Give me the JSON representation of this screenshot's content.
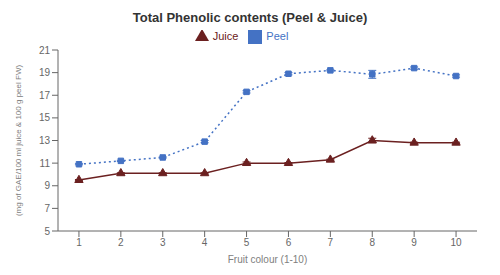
{
  "chart_data": {
    "type": "line",
    "title": "Total Phenolic contents (Peel & Juice)",
    "x_label": "Fruit colour (1-10)",
    "y_label": "(mg of GAE/100 ml juice & 100 g peel FW)",
    "x": [
      1,
      2,
      3,
      4,
      5,
      6,
      7,
      8,
      9,
      10
    ],
    "series": [
      {
        "name": "Peel",
        "color": "#4472C4",
        "marker": "square",
        "line_style": "dotted",
        "values": [
          10.9,
          11.2,
          11.5,
          12.9,
          17.3,
          18.9,
          19.2,
          18.85,
          19.4,
          18.7
        ],
        "errors": [
          0.05,
          0.05,
          0.05,
          0.1,
          0.1,
          0.1,
          0.05,
          0.35,
          0.1,
          0.1
        ]
      },
      {
        "name": "Juice",
        "color": "#6B2020",
        "marker": "triangle",
        "line_style": "solid",
        "values": [
          9.5,
          10.1,
          10.1,
          10.1,
          11.0,
          11.0,
          11.3,
          13.0,
          12.8,
          12.8
        ],
        "errors": [
          0.05,
          0.05,
          0.05,
          0.05,
          0.1,
          0.05,
          0.05,
          0.2,
          0.05,
          0.05
        ]
      }
    ],
    "xlim": [
      0.5,
      10.5
    ],
    "xticks": [
      1,
      2,
      3,
      4,
      5,
      6,
      7,
      8,
      9,
      10
    ],
    "ylim": [
      5,
      21
    ],
    "yticks": [
      5,
      7,
      9,
      11,
      13,
      15,
      17,
      19,
      21
    ],
    "grid": false,
    "legend": "top"
  }
}
